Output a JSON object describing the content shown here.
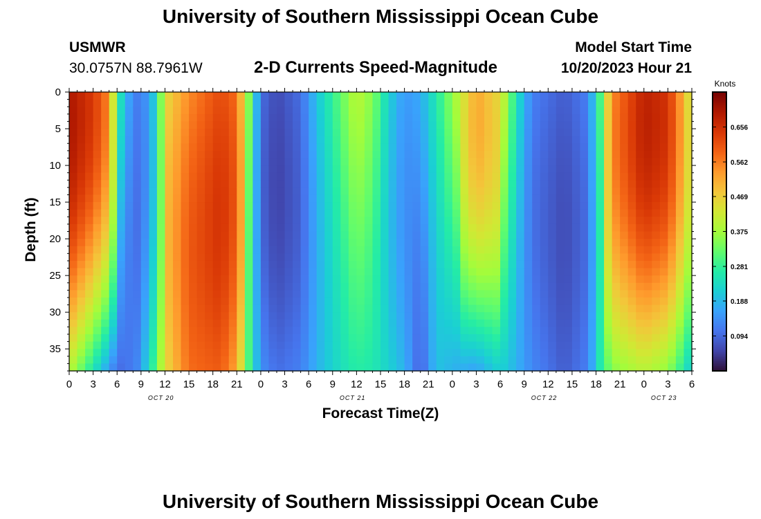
{
  "page": {
    "title": "University of Southern Mississippi Ocean Cube",
    "footer_title": "University of Southern Mississippi Ocean Cube",
    "station_name": "USMWR",
    "station_coords": "30.0757N  88.7961W",
    "subtitle": "2-D Currents Speed-Magnitude",
    "model_start_label": "Model Start Time",
    "model_start_value": "10/20/2023 Hour 21"
  },
  "colors": {
    "ramp": [
      "#30123b",
      "#4145ab",
      "#4675ed",
      "#39a2fc",
      "#1bcfd4",
      "#24eca6",
      "#61fc6c",
      "#a4fc3b",
      "#d1e834",
      "#f3c63a",
      "#fe9b2d",
      "#f36315",
      "#d93806",
      "#b11901",
      "#7a0402"
    ]
  },
  "chart_data": {
    "type": "heatmap",
    "xlabel": "Forecast Time(Z)",
    "ylabel": "Depth (ft)",
    "x_tick_labels": [
      "0",
      "3",
      "6",
      "9",
      "12",
      "15",
      "18",
      "21",
      "0",
      "3",
      "6",
      "9",
      "12",
      "15",
      "18",
      "21",
      "0",
      "3",
      "6",
      "9",
      "12",
      "15",
      "18",
      "21",
      "0",
      "3",
      "6"
    ],
    "date_labels": [
      {
        "label": "OCT 20",
        "hour": 11.5
      },
      {
        "label": "OCT 21",
        "hour": 35.5
      },
      {
        "label": "OCT 22",
        "hour": 59.5
      },
      {
        "label": "OCT 23",
        "hour": 74.5
      }
    ],
    "x_range_hours": [
      0,
      78
    ],
    "y_ticks": [
      0,
      5,
      10,
      15,
      20,
      25,
      30,
      35
    ],
    "y_range_ft": [
      0,
      38
    ],
    "colorbar": {
      "unit": "Knots",
      "tick_labels": [
        "0.656",
        "0.562",
        "0.469",
        "0.375",
        "0.281",
        "0.188",
        "0.094"
      ],
      "range": [
        0,
        0.75
      ]
    },
    "grid_columns": 78,
    "grid_rows": 38,
    "hour_profile": [
      [
        0,
        0.7,
        0.4
      ],
      [
        3,
        0.64,
        0.25
      ],
      [
        5,
        0.55,
        0.15
      ],
      [
        6,
        0.3,
        0.1
      ],
      [
        7,
        0.18,
        0.1
      ],
      [
        8.5,
        0.12,
        0.13
      ],
      [
        10,
        0.15,
        0.23
      ],
      [
        11,
        0.25,
        0.33
      ],
      [
        12,
        0.45,
        0.45
      ],
      [
        15,
        0.55,
        0.58
      ],
      [
        19,
        0.62,
        0.6
      ],
      [
        21,
        0.58,
        0.52
      ],
      [
        22.5,
        0.35,
        0.3
      ],
      [
        24,
        0.1,
        0.14
      ],
      [
        26,
        0.06,
        0.1
      ],
      [
        29,
        0.1,
        0.12
      ],
      [
        31,
        0.2,
        0.18
      ],
      [
        34,
        0.32,
        0.24
      ],
      [
        36,
        0.4,
        0.27
      ],
      [
        38,
        0.35,
        0.26
      ],
      [
        40,
        0.22,
        0.22
      ],
      [
        42,
        0.15,
        0.18
      ],
      [
        44,
        0.17,
        0.08
      ],
      [
        46,
        0.26,
        0.2
      ],
      [
        48,
        0.36,
        0.18
      ],
      [
        51,
        0.52,
        0.16
      ],
      [
        54,
        0.45,
        0.22
      ],
      [
        56,
        0.25,
        0.18
      ],
      [
        58,
        0.12,
        0.13
      ],
      [
        62,
        0.08,
        0.08
      ],
      [
        65,
        0.12,
        0.12
      ],
      [
        66.5,
        0.3,
        0.26
      ],
      [
        68,
        0.55,
        0.35
      ],
      [
        72,
        0.68,
        0.4
      ],
      [
        75,
        0.65,
        0.36
      ],
      [
        77,
        0.5,
        0.26
      ],
      [
        78,
        0.4,
        0.2
      ]
    ]
  }
}
